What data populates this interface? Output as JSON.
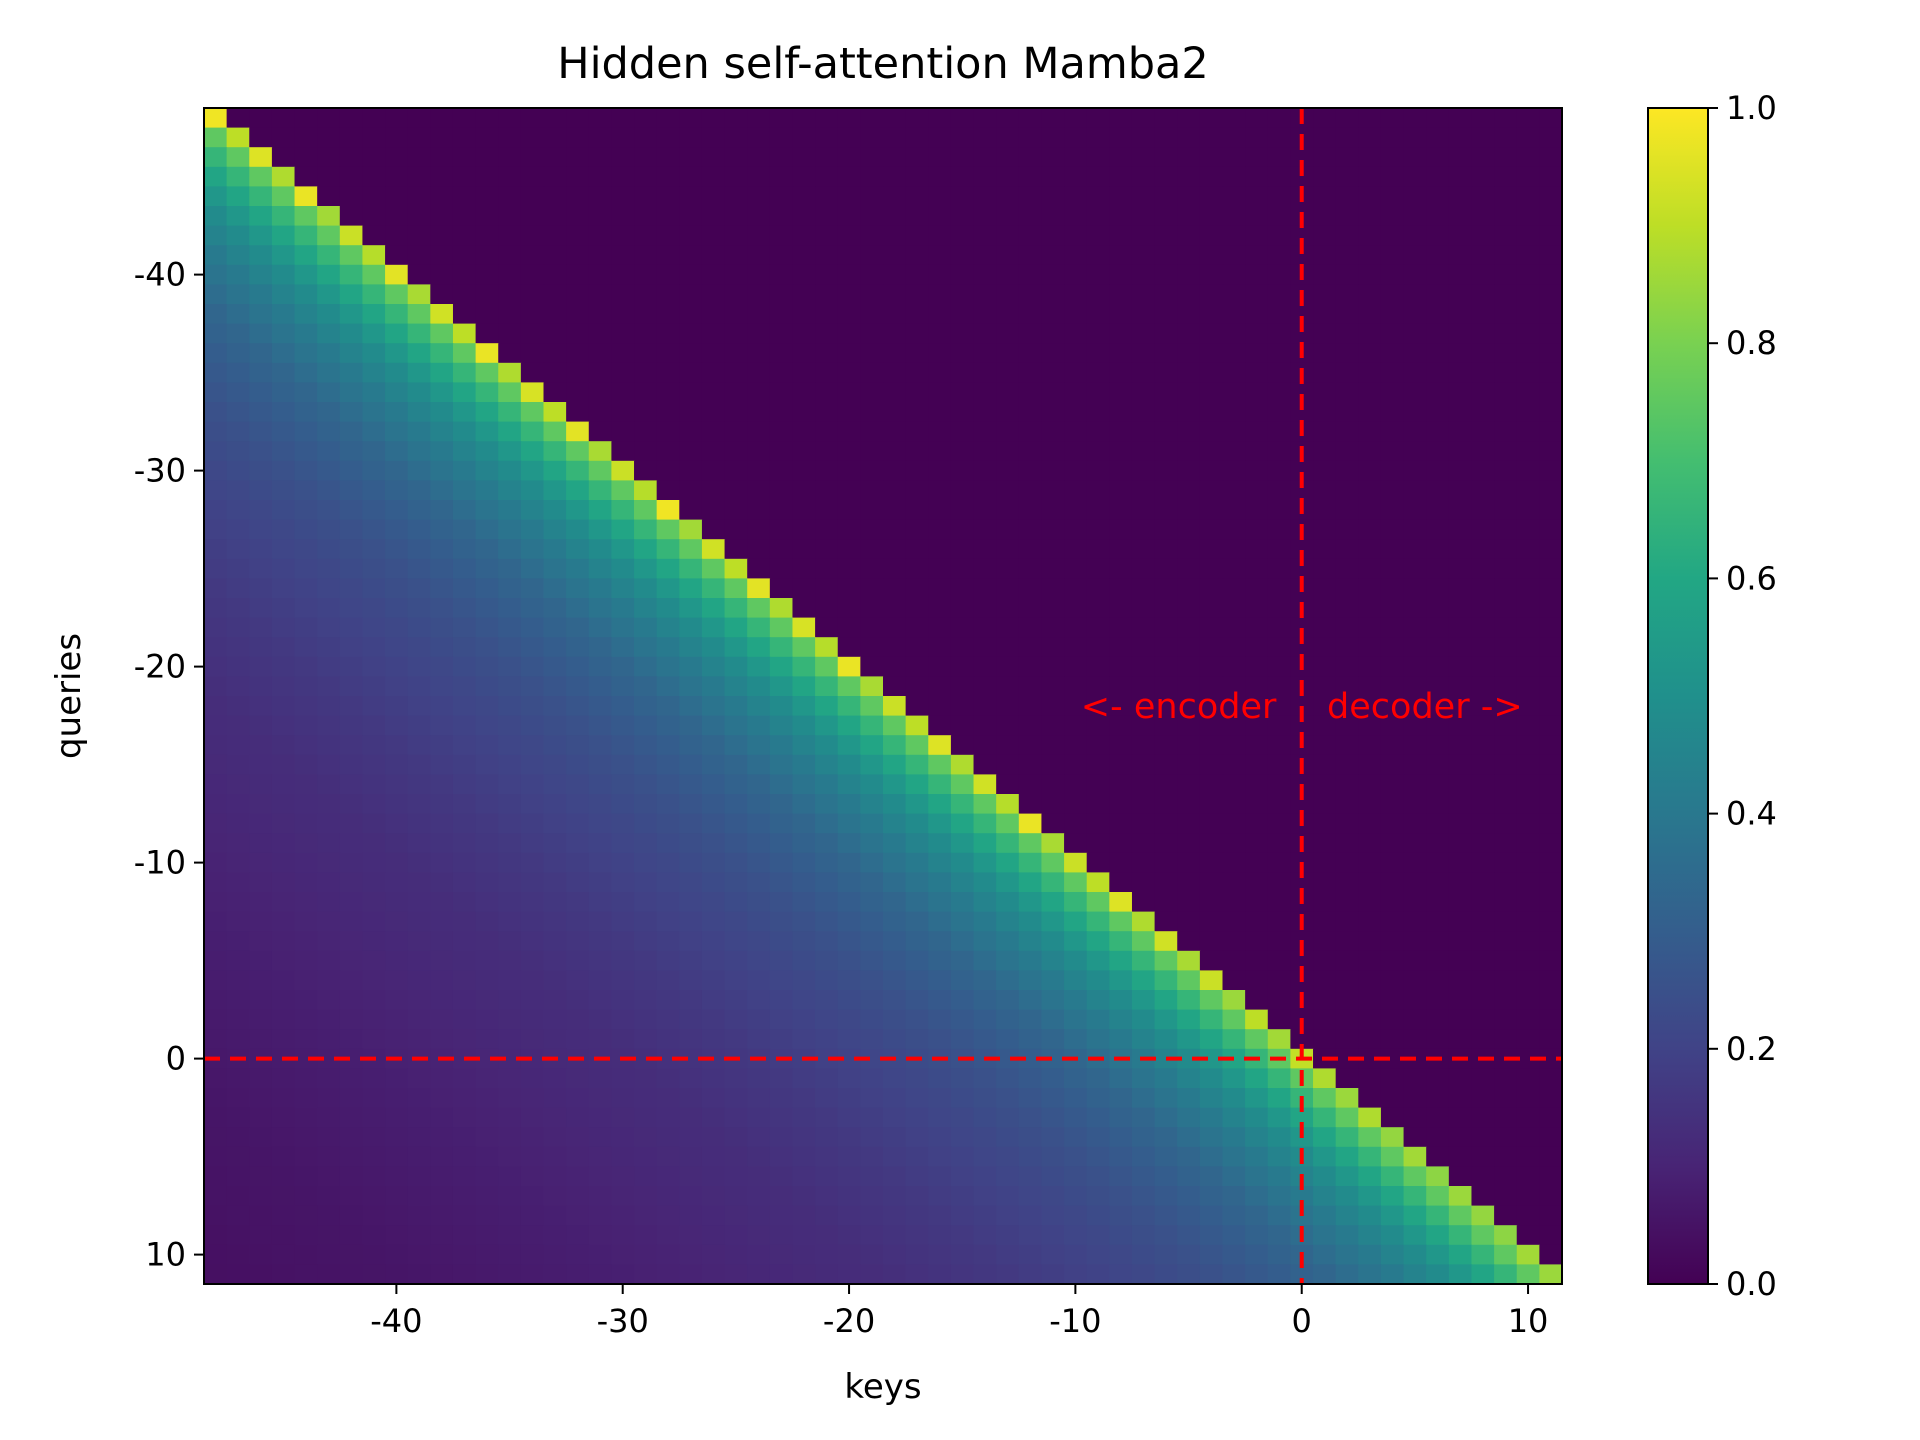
{
  "chart_data": {
    "type": "heatmap",
    "title": "Hidden self-attention Mamba2",
    "xlabel": "keys",
    "ylabel": "queries",
    "x_range": [
      -48.5,
      11.5
    ],
    "y_range": [
      11.5,
      -48.5
    ],
    "key_values": [
      -48,
      -47,
      -46,
      -45,
      -44,
      -43,
      -42,
      -41,
      -40,
      -39,
      -38,
      -37,
      -36,
      -35,
      -34,
      -33,
      -32,
      -31,
      -30,
      -29,
      -28,
      -27,
      -26,
      -25,
      -24,
      -23,
      -22,
      -21,
      -20,
      -19,
      -18,
      -17,
      -16,
      -15,
      -14,
      -13,
      -12,
      -11,
      -10,
      -9,
      -8,
      -7,
      -6,
      -5,
      -4,
      -3,
      -2,
      -1,
      0,
      1,
      2,
      3,
      4,
      5,
      6,
      7,
      8,
      9,
      10,
      11
    ],
    "query_values": [
      -48,
      -47,
      -46,
      -45,
      -44,
      -43,
      -42,
      -41,
      -40,
      -39,
      -38,
      -37,
      -36,
      -35,
      -34,
      -33,
      -32,
      -31,
      -30,
      -29,
      -28,
      -27,
      -26,
      -25,
      -24,
      -23,
      -22,
      -21,
      -20,
      -19,
      -18,
      -17,
      -16,
      -15,
      -14,
      -13,
      -12,
      -11,
      -10,
      -9,
      -8,
      -7,
      -6,
      -5,
      -4,
      -3,
      -2,
      -1,
      0,
      1,
      2,
      3,
      4,
      5,
      6,
      7,
      8,
      9,
      10,
      11
    ],
    "mask": "causal: value 0.0 where key > query",
    "diagonal_values": [
      0.98,
      0.9,
      0.95,
      0.88,
      0.97,
      0.86,
      0.92,
      0.89,
      0.96,
      0.87,
      0.93,
      0.9,
      0.97,
      0.88,
      0.94,
      0.9,
      0.96,
      0.87,
      0.92,
      0.89,
      0.98,
      0.86,
      0.93,
      0.9,
      0.96,
      0.88,
      0.94,
      0.89,
      0.97,
      0.87,
      0.92,
      0.9,
      0.95,
      0.88,
      0.93,
      0.89,
      0.97,
      0.87,
      0.92,
      0.9,
      0.95,
      0.88,
      0.93,
      0.87,
      0.92,
      0.85,
      0.9,
      0.86,
      0.91,
      0.88,
      0.85,
      0.88,
      0.84,
      0.86,
      0.83,
      0.85,
      0.84,
      0.83,
      0.86,
      0.85
    ],
    "decay_profile": {
      "distance": [
        0,
        1,
        2,
        3,
        4,
        5,
        7,
        10,
        15,
        20,
        25,
        30,
        40,
        50,
        60
      ],
      "value": [
        0.92,
        0.75,
        0.66,
        0.59,
        0.53,
        0.48,
        0.41,
        0.33,
        0.25,
        0.2,
        0.16,
        0.13,
        0.09,
        0.06,
        0.04
      ]
    },
    "colormap": "viridis",
    "colorbar": {
      "range": [
        0.0,
        1.0
      ],
      "ticks": [
        "0.0",
        "0.2",
        "0.4",
        "0.6",
        "0.8",
        "1.0"
      ]
    },
    "x_ticks": [
      "-40",
      "-30",
      "-20",
      "-10",
      "0",
      "10"
    ],
    "y_ticks": [
      "-40",
      "-30",
      "-20",
      "-10",
      "0",
      "10"
    ],
    "reference_lines": {
      "x": 0,
      "y": 0,
      "color": "#ff0000",
      "style": "dashed"
    },
    "annotations": [
      {
        "text": "<- encoder",
        "x": -0.5,
        "y": -18
      },
      {
        "text": "decoder ->",
        "x": 0.5,
        "y": -18
      }
    ]
  }
}
